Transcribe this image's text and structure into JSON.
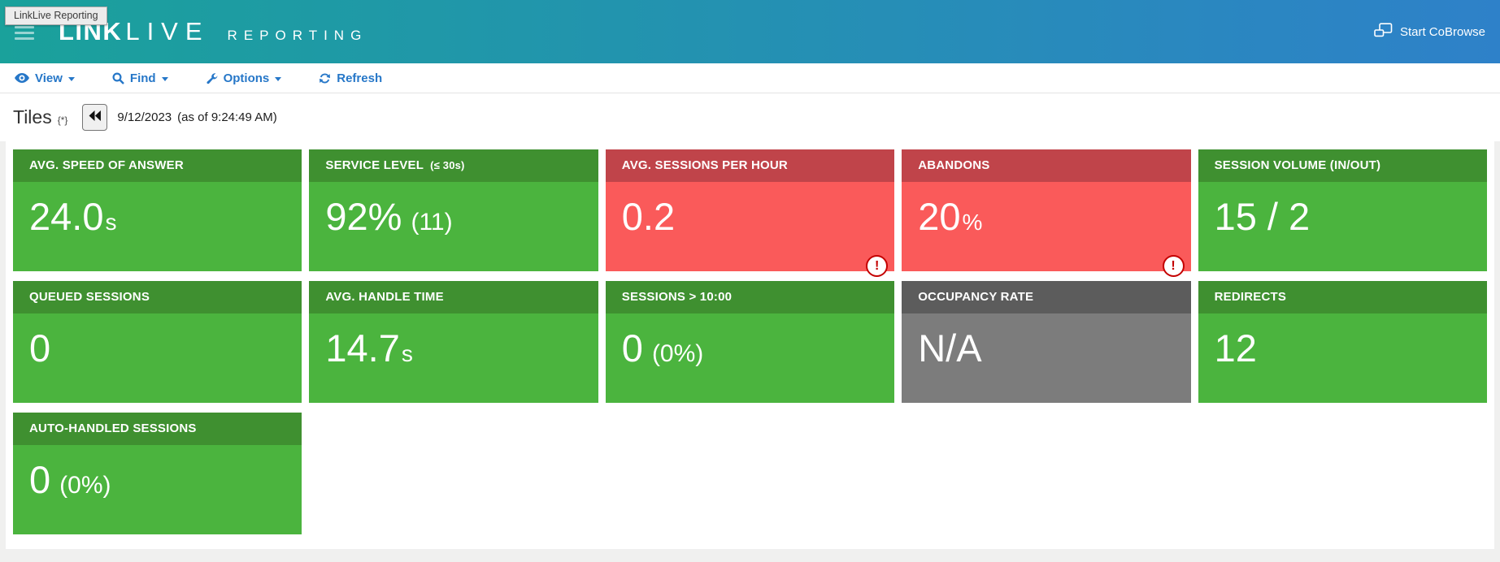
{
  "header": {
    "tooltip": "LinkLive Reporting",
    "logo": {
      "link": "LINK",
      "live": "LIVE",
      "reporting": "REPORTING"
    },
    "cobrowse_label": "Start CoBrowse"
  },
  "toolbar": {
    "items": [
      {
        "label": "View",
        "icon": "eye-icon",
        "caret": true
      },
      {
        "label": "Find",
        "icon": "search-icon",
        "caret": true
      },
      {
        "label": "Options",
        "icon": "wrench-icon",
        "caret": true
      },
      {
        "label": "Refresh",
        "icon": "refresh-icon",
        "caret": false
      }
    ]
  },
  "heading": {
    "title": "Tiles",
    "flag": "{*}",
    "date": "9/12/2023",
    "asof": "(as of 9:24:49 AM)"
  },
  "alert_glyph": "!",
  "tiles": [
    {
      "title": "AVG. SPEED OF ANSWER",
      "value": "24.0",
      "suffix": "s",
      "color": "green"
    },
    {
      "title": "SERVICE LEVEL",
      "title_suffix": "(≤ 30s)",
      "value": "92%",
      "sub": "(11)",
      "color": "green"
    },
    {
      "title": "AVG. SESSIONS PER HOUR",
      "value": "0.2",
      "color": "red",
      "alert": true
    },
    {
      "title": "ABANDONS",
      "value": "20",
      "suffix": "%",
      "color": "red",
      "alert": true
    },
    {
      "title": "SESSION VOLUME (IN/OUT)",
      "value": "15 / 2",
      "color": "green"
    },
    {
      "title": "QUEUED SESSIONS",
      "value": "0",
      "color": "green"
    },
    {
      "title": "AVG. HANDLE TIME",
      "value": "14.7",
      "suffix": "s",
      "color": "green"
    },
    {
      "title": "SESSIONS > 10:00",
      "value": "0",
      "sub": "(0%)",
      "color": "green"
    },
    {
      "title": "OCCUPANCY RATE",
      "value": "N/A",
      "color": "gray"
    },
    {
      "title": "REDIRECTS",
      "value": "12",
      "color": "green"
    },
    {
      "title": "AUTO-HANDLED SESSIONS",
      "value": "0",
      "sub": "(0%)",
      "color": "green"
    }
  ],
  "colors": {
    "header_gradient_left": "#1aa19b",
    "header_gradient_right": "#2e81c9",
    "toolbar_link": "#2677c8",
    "tile_green_header": "#3f9030",
    "tile_green_body": "#4bb43e",
    "tile_red_header": "#c0444a",
    "tile_red_body": "#fa5a5a",
    "tile_gray_header": "#5c5c5c",
    "tile_gray_body": "#7c7c7c",
    "alert_red": "#c40000",
    "page_background": "#f0f0ef"
  }
}
